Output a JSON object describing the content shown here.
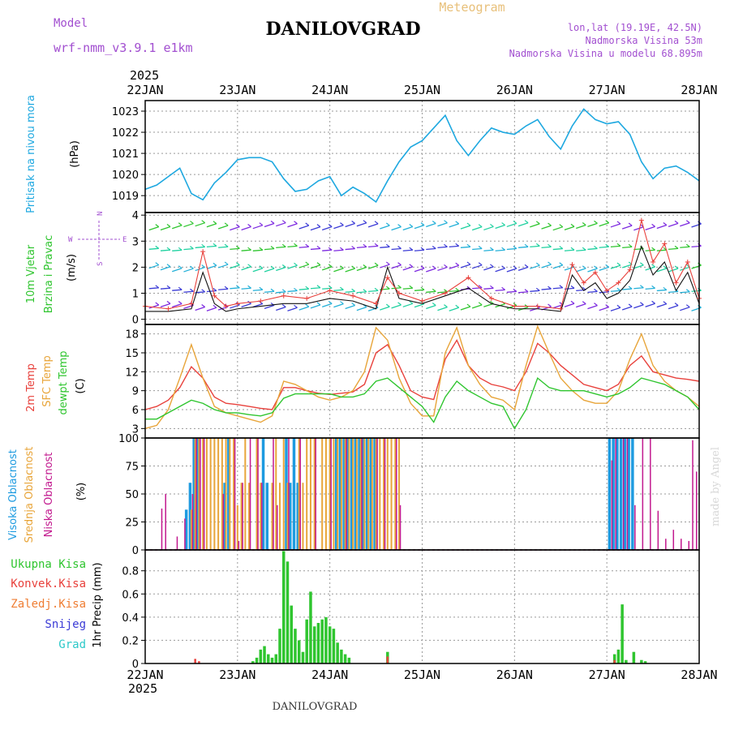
{
  "header": {
    "title": "DANILOVGRAD",
    "subtitle": "Meteogram",
    "model_label": "Model",
    "model_name": "wrf-nmm_v3.9.1 e1km",
    "lonlat": "lon,lat (19.19E, 42.5N)",
    "elevation": "Nadmorska Visina 53m",
    "model_elevation": "Nadmorska Visina u modelu 68.895m",
    "footer": "DANILOVGRAD",
    "credit": "made by Angel"
  },
  "colors": {
    "pressure": "#1ea8e0",
    "temp2m": "#e8413c",
    "sfc_temp": "#e8a53a",
    "dewpoint": "#2fc52f",
    "cloud_high": "#1e9be0",
    "cloud_mid": "#e8a53a",
    "cloud_low": "#c2188e",
    "precip_total": "#2fc52f",
    "precip_conv": "#e8413c",
    "wind_speed": "#111111",
    "wind_gust": "#e8413c",
    "model": "#a24fd0"
  },
  "time_axis": {
    "year": "2025",
    "dates": [
      "22JAN",
      "23JAN",
      "24JAN",
      "25JAN",
      "26JAN",
      "27JAN",
      "28JAN"
    ]
  },
  "chart_data": [
    {
      "type": "line",
      "panel": "pressure",
      "labels": [
        "Pritisak na nivou mora",
        "(hPa)"
      ],
      "x_unit": "hours since 22JAN 00",
      "ylim": [
        1018.2,
        1023.5
      ],
      "yticks": [
        1019,
        1020,
        1021,
        1022,
        1023
      ],
      "grid": true,
      "series": [
        {
          "x": [
            0,
            3,
            6,
            9,
            12,
            15,
            18,
            21,
            24,
            27,
            30,
            33,
            36,
            39,
            42,
            45,
            48,
            51,
            54,
            57,
            60,
            63,
            66,
            69,
            72,
            75,
            78,
            81,
            84,
            87,
            90,
            93,
            96,
            99,
            102,
            105,
            108,
            111,
            114,
            117,
            120,
            123,
            126,
            129,
            132,
            135,
            138,
            141,
            144
          ],
          "y": [
            1019.3,
            1019.5,
            1019.9,
            1020.3,
            1019.1,
            1018.8,
            1019.6,
            1020.1,
            1020.7,
            1020.8,
            1020.8,
            1020.6,
            1019.8,
            1019.2,
            1019.3,
            1019.7,
            1019.9,
            1019.0,
            1019.4,
            1019.1,
            1018.7,
            1019.7,
            1020.6,
            1021.3,
            1021.6,
            1022.2,
            1022.8,
            1021.6,
            1020.9,
            1021.6,
            1022.2,
            1022.0,
            1021.9,
            1022.3,
            1022.6,
            1021.8,
            1021.2,
            1022.3,
            1023.1,
            1022.6,
            1022.4,
            1022.5,
            1021.9,
            1020.6,
            1019.8,
            1020.3,
            1020.4,
            1020.1,
            1019.7
          ]
        }
      ]
    },
    {
      "type": "line",
      "panel": "wind",
      "labels": [
        "10m Vjetar",
        "Brzina i Pravac",
        "(m/s)"
      ],
      "x_unit": "hours since 22JAN 00",
      "ylim": [
        -0.2,
        4.1
      ],
      "yticks": [
        0,
        1,
        2,
        3,
        4
      ],
      "compass": [
        "W",
        "E",
        "N",
        "S"
      ],
      "grid": true,
      "series": [
        {
          "name": "speed",
          "x": [
            0,
            6,
            12,
            15,
            18,
            21,
            24,
            30,
            36,
            42,
            48,
            54,
            60,
            63,
            66,
            72,
            78,
            84,
            90,
            96,
            102,
            108,
            111,
            114,
            117,
            120,
            123,
            126,
            129,
            132,
            135,
            138,
            141,
            144
          ],
          "y": [
            0.3,
            0.3,
            0.4,
            1.8,
            0.6,
            0.3,
            0.4,
            0.5,
            0.6,
            0.6,
            0.8,
            0.7,
            0.4,
            2.0,
            0.8,
            0.6,
            0.9,
            1.2,
            0.6,
            0.4,
            0.4,
            0.3,
            1.7,
            1.1,
            1.4,
            0.8,
            1.0,
            1.5,
            2.8,
            1.7,
            2.2,
            1.1,
            1.8,
            0.6
          ]
        },
        {
          "name": "gust",
          "x": [
            0,
            6,
            12,
            15,
            18,
            21,
            24,
            30,
            36,
            42,
            48,
            54,
            60,
            63,
            66,
            72,
            78,
            84,
            90,
            96,
            102,
            108,
            111,
            114,
            117,
            120,
            123,
            126,
            129,
            132,
            135,
            138,
            141,
            144
          ],
          "y": [
            0.5,
            0.4,
            0.6,
            2.6,
            0.9,
            0.5,
            0.6,
            0.7,
            0.9,
            0.8,
            1.1,
            0.9,
            0.6,
            1.6,
            1.0,
            0.7,
            1.0,
            1.6,
            0.8,
            0.5,
            0.5,
            0.4,
            2.1,
            1.4,
            1.8,
            1.1,
            1.4,
            1.9,
            3.8,
            2.2,
            2.9,
            1.4,
            2.2,
            0.8
          ]
        }
      ]
    },
    {
      "type": "line",
      "panel": "temperature",
      "labels": [
        "2m Temp",
        "SFC Temp",
        "dewpt Temp",
        "(C)"
      ],
      "x_unit": "hours since 22JAN 00",
      "ylim": [
        1.5,
        19.5
      ],
      "yticks": [
        3,
        6,
        9,
        12,
        15,
        18
      ],
      "grid": true,
      "series": [
        {
          "name": "2m Temp",
          "x": [
            0,
            3,
            6,
            9,
            12,
            15,
            18,
            21,
            24,
            27,
            30,
            33,
            36,
            39,
            42,
            45,
            48,
            51,
            54,
            57,
            60,
            63,
            66,
            69,
            72,
            75,
            78,
            81,
            84,
            87,
            90,
            93,
            96,
            99,
            102,
            105,
            108,
            111,
            114,
            117,
            120,
            123,
            126,
            129,
            132,
            135,
            138,
            141,
            144
          ],
          "y": [
            6.0,
            6.5,
            7.5,
            9.5,
            12.8,
            11.0,
            8.0,
            7.0,
            6.8,
            6.5,
            6.2,
            6.0,
            9.5,
            9.5,
            9.0,
            8.6,
            8.4,
            8.6,
            8.8,
            10.0,
            15.0,
            16.3,
            13.0,
            9.0,
            8.0,
            7.6,
            14.0,
            17.0,
            13.0,
            11.0,
            10.0,
            9.6,
            9.0,
            12.0,
            16.5,
            15.0,
            13.0,
            11.5,
            10.0,
            9.5,
            9.0,
            10.0,
            13.0,
            14.5,
            12.0,
            11.5,
            11.0,
            10.8,
            10.5
          ]
        },
        {
          "name": "SFC Temp",
          "x": [
            0,
            3,
            6,
            9,
            12,
            15,
            18,
            21,
            24,
            27,
            30,
            33,
            36,
            39,
            42,
            45,
            48,
            51,
            54,
            57,
            60,
            63,
            66,
            69,
            72,
            75,
            78,
            81,
            84,
            87,
            90,
            93,
            96,
            99,
            102,
            105,
            108,
            111,
            114,
            117,
            120,
            123,
            126,
            129,
            132,
            135,
            138,
            141,
            144
          ],
          "y": [
            3.0,
            3.5,
            6.0,
            11.0,
            16.3,
            11.0,
            6.5,
            5.5,
            5.0,
            4.5,
            4.0,
            5.0,
            10.5,
            10.0,
            9.0,
            8.0,
            7.5,
            8.0,
            9.0,
            12.0,
            19.0,
            17.0,
            11.0,
            7.0,
            5.0,
            5.0,
            15.0,
            19.0,
            13.0,
            10.0,
            8.0,
            7.5,
            6.0,
            13.0,
            19.2,
            15.0,
            11.0,
            9.0,
            7.5,
            7.0,
            7.0,
            9.0,
            14.0,
            18.0,
            13.0,
            10.5,
            9.0,
            8.0,
            6.5
          ]
        },
        {
          "name": "dewpt Temp",
          "x": [
            0,
            3,
            6,
            9,
            12,
            15,
            18,
            21,
            24,
            27,
            30,
            33,
            36,
            39,
            42,
            45,
            48,
            51,
            54,
            57,
            60,
            63,
            66,
            69,
            72,
            75,
            78,
            81,
            84,
            87,
            90,
            93,
            96,
            99,
            102,
            105,
            108,
            111,
            114,
            117,
            120,
            123,
            126,
            129,
            132,
            135,
            138,
            141,
            144
          ],
          "y": [
            4.5,
            4.5,
            5.5,
            6.5,
            7.5,
            7.0,
            6.0,
            5.5,
            5.5,
            5.2,
            5.0,
            5.5,
            7.8,
            8.5,
            8.5,
            8.5,
            8.5,
            8.0,
            8.0,
            8.5,
            10.5,
            11.0,
            9.5,
            8.0,
            6.5,
            4.0,
            8.0,
            10.5,
            9.0,
            8.0,
            7.0,
            6.5,
            3.0,
            6.0,
            11.0,
            9.5,
            9.0,
            9.0,
            9.0,
            8.5,
            8.0,
            8.5,
            9.5,
            11.0,
            10.5,
            10.0,
            9.0,
            8.0,
            6.0
          ]
        }
      ]
    },
    {
      "type": "bar",
      "panel": "clouds",
      "labels": [
        "Visoka Oblacnost",
        "Srednja Oblacnost",
        "Niska Oblacnost",
        "(%)"
      ],
      "x_unit": "hours since 22JAN 00",
      "ylim": [
        0,
        100
      ],
      "yticks": [
        0,
        25,
        50,
        75,
        100
      ],
      "grid": true,
      "series": [
        {
          "name": "high",
          "x": [
            11,
            12,
            13,
            14,
            21,
            22,
            31,
            32,
            37,
            38,
            39,
            40,
            50,
            51,
            52,
            53,
            54,
            55,
            56,
            57,
            58,
            59,
            60,
            121,
            122,
            123,
            124,
            125,
            126,
            127
          ],
          "y": [
            36,
            60,
            100,
            100,
            60,
            100,
            100,
            60,
            100,
            60,
            100,
            60,
            100,
            100,
            100,
            100,
            100,
            100,
            100,
            100,
            100,
            100,
            100,
            100,
            100,
            100,
            100,
            100,
            100,
            100
          ]
        },
        {
          "name": "mid",
          "x": [
            12,
            13,
            14,
            15,
            16,
            17,
            18,
            19,
            20,
            21,
            22,
            23,
            24,
            25,
            26,
            27,
            29,
            30,
            33,
            34,
            35,
            36,
            37,
            40,
            41,
            42,
            43,
            44,
            46,
            47,
            48,
            49,
            50,
            51,
            52,
            53,
            54,
            55,
            56,
            57,
            58,
            59,
            60,
            61,
            62,
            63,
            64,
            65,
            66
          ],
          "y": [
            36,
            100,
            100,
            100,
            100,
            100,
            100,
            100,
            100,
            100,
            100,
            100,
            40,
            60,
            100,
            60,
            100,
            60,
            60,
            100,
            60,
            100,
            60,
            100,
            60,
            100,
            100,
            100,
            100,
            100,
            100,
            100,
            100,
            100,
            100,
            100,
            100,
            100,
            100,
            100,
            100,
            100,
            100,
            100,
            100,
            100,
            100,
            100,
            100
          ]
        },
        {
          "name": "low",
          "x": [
            4,
            5,
            8,
            10,
            12,
            13,
            14,
            15,
            20,
            23,
            24,
            25,
            27,
            29,
            30,
            33,
            34,
            37,
            40,
            44,
            48,
            52,
            56,
            60,
            62,
            65,
            66,
            121,
            122,
            124,
            125,
            127,
            129,
            131,
            133,
            135,
            137,
            139,
            141,
            142,
            143
          ],
          "y": [
            37,
            50,
            12,
            28,
            50,
            100,
            100,
            100,
            50,
            100,
            8,
            60,
            100,
            100,
            60,
            100,
            40,
            100,
            100,
            100,
            100,
            100,
            100,
            100,
            100,
            100,
            40,
            80,
            100,
            100,
            100,
            40,
            100,
            100,
            35,
            10,
            18,
            10,
            8,
            98,
            70
          ]
        }
      ]
    },
    {
      "type": "bar",
      "panel": "precip",
      "labels": [
        "Ukupna Kisa",
        "Konvek.Kisa",
        "Zaledj.Kisa",
        "Snijeg",
        "Grad",
        "1hr Precip (mm)"
      ],
      "x_unit": "hours since 22JAN 00",
      "ylim": [
        0,
        0.98
      ],
      "yticks": [
        0,
        0.2,
        0.4,
        0.6,
        0.8
      ],
      "grid": true,
      "series": [
        {
          "name": "Ukupna Kisa",
          "x": [
            28,
            29,
            30,
            31,
            32,
            33,
            34,
            35,
            36,
            37,
            38,
            39,
            40,
            41,
            42,
            43,
            44,
            45,
            46,
            47,
            48,
            49,
            50,
            51,
            52,
            53,
            63,
            122,
            123,
            124,
            125,
            127,
            129,
            130
          ],
          "y": [
            0.02,
            0.05,
            0.12,
            0.15,
            0.08,
            0.05,
            0.08,
            0.3,
            0.97,
            0.88,
            0.5,
            0.3,
            0.2,
            0.1,
            0.38,
            0.62,
            0.32,
            0.35,
            0.38,
            0.4,
            0.32,
            0.3,
            0.18,
            0.12,
            0.08,
            0.05,
            0.1,
            0.08,
            0.12,
            0.51,
            0.03,
            0.1,
            0.03,
            0.02
          ]
        },
        {
          "name": "Konvek.Kisa",
          "x": [
            13,
            14,
            63,
            122
          ],
          "y": [
            0.04,
            0.02,
            0.06,
            0.03
          ]
        }
      ]
    }
  ]
}
